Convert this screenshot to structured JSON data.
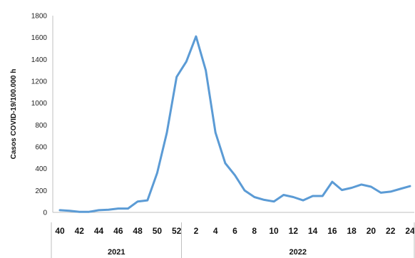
{
  "chart_data": {
    "type": "line",
    "ylabel": "Casos COVID-19/100.000 h",
    "ylim": [
      0,
      1800
    ],
    "yticks": [
      0,
      200,
      400,
      600,
      800,
      1000,
      1200,
      1400,
      1600,
      1800
    ],
    "grid": false,
    "x_tick_labels": [
      "40",
      "42",
      "44",
      "46",
      "48",
      "50",
      "52",
      "2",
      "4",
      "6",
      "8",
      "10",
      "12",
      "14",
      "16",
      "18",
      "20",
      "22",
      "24"
    ],
    "year_groups": [
      {
        "label": "2021",
        "weeks": "40-52"
      },
      {
        "label": "2022",
        "weeks": "1-24"
      }
    ],
    "series": [
      {
        "color": "#5b9bd5",
        "x": [
          "40",
          "41",
          "42",
          "43",
          "44",
          "45",
          "46",
          "47",
          "48",
          "49",
          "50",
          "51",
          "52",
          "1",
          "2",
          "3",
          "4",
          "5",
          "6",
          "7",
          "8",
          "9",
          "10",
          "11",
          "12",
          "13",
          "14",
          "15",
          "16",
          "17",
          "18",
          "19",
          "20",
          "21",
          "22",
          "23",
          "24"
        ],
        "values": [
          20,
          15,
          5,
          5,
          20,
          25,
          35,
          35,
          100,
          110,
          360,
          730,
          1240,
          1380,
          1610,
          1300,
          730,
          450,
          340,
          200,
          140,
          115,
          100,
          160,
          140,
          110,
          150,
          150,
          280,
          205,
          225,
          255,
          235,
          180,
          190,
          215,
          240
        ]
      }
    ]
  }
}
